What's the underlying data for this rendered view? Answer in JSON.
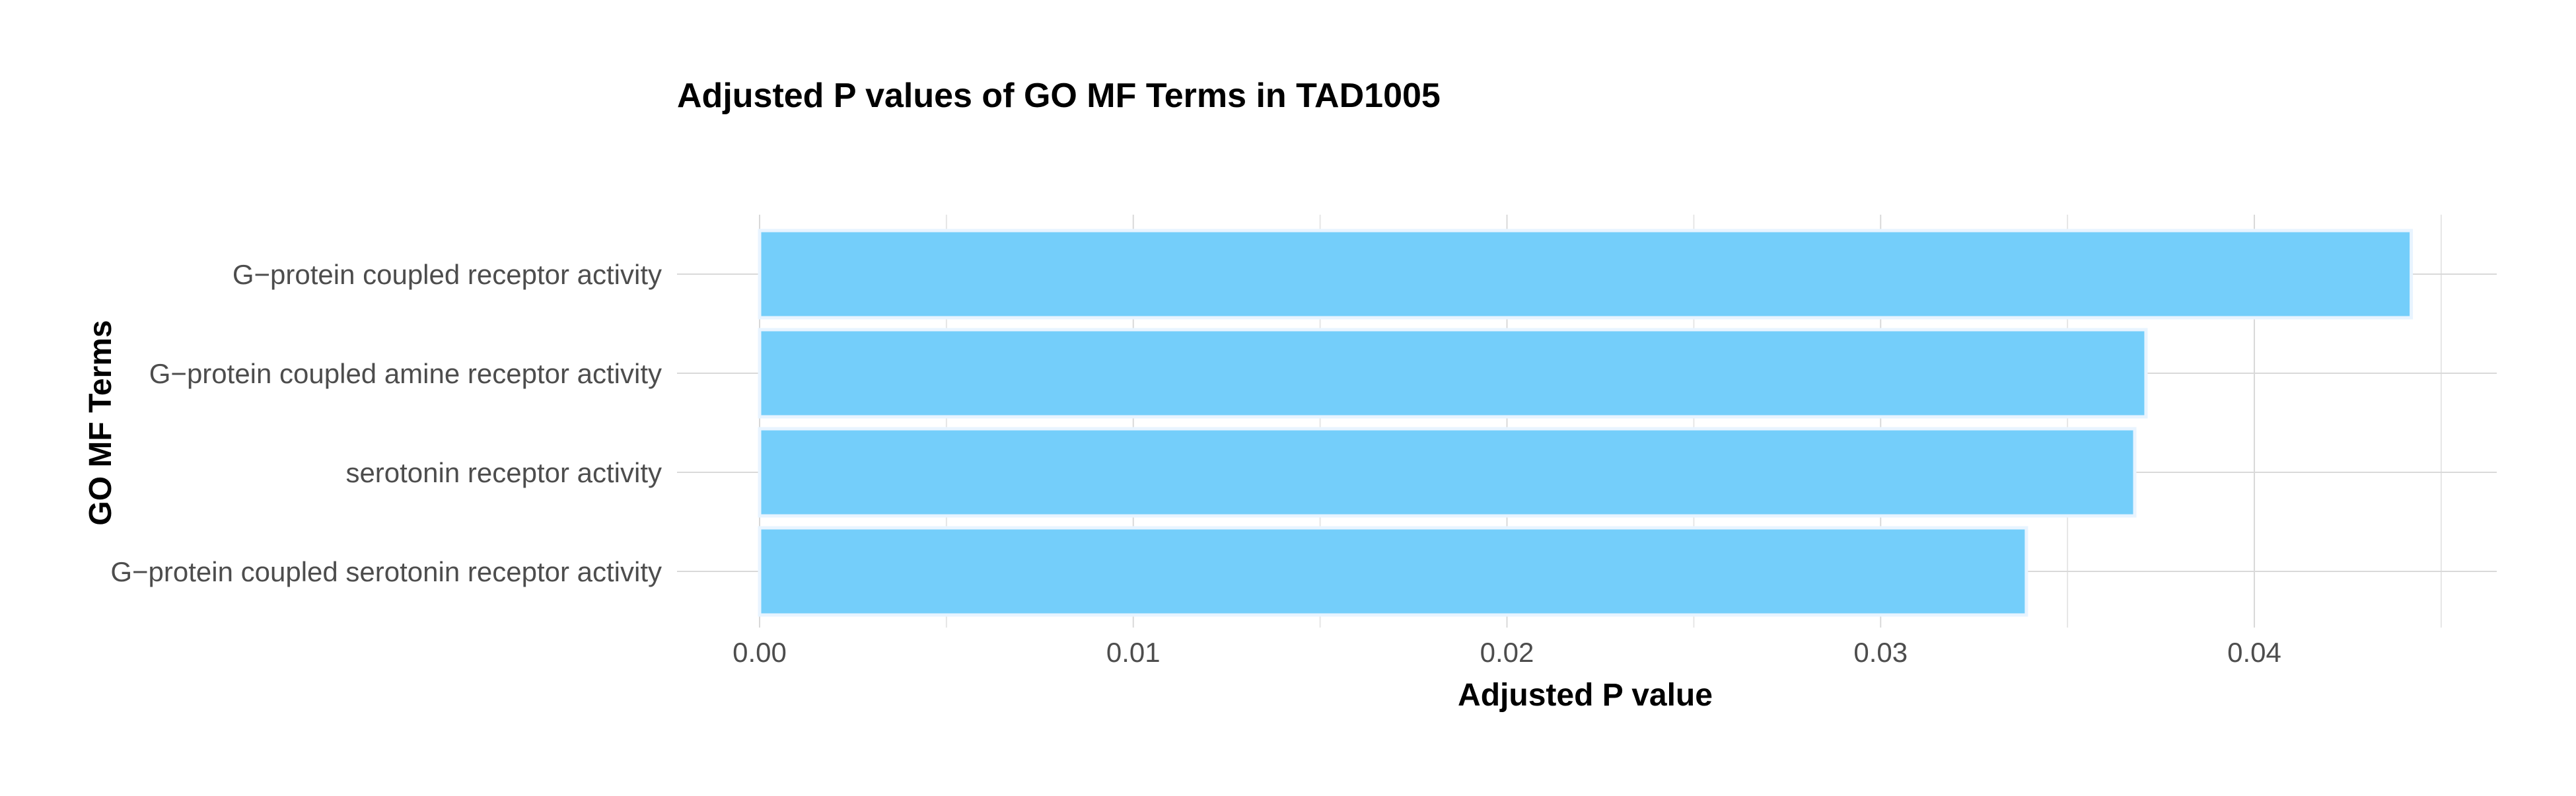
{
  "chart_data": {
    "type": "bar",
    "orientation": "horizontal",
    "title": "Adjusted P values of GO MF Terms in TAD1005",
    "xlabel": "Adjusted P value",
    "ylabel": "GO MF Terms",
    "categories": [
      "G−protein coupled receptor activity",
      "G−protein coupled amine receptor activity",
      "serotonin receptor activity",
      "G−protein coupled serotonin receptor activity"
    ],
    "values": [
      0.0442,
      0.0371,
      0.0368,
      0.0339
    ],
    "xlim": [
      0,
      0.0465
    ],
    "x_ticks": [
      0.0,
      0.01,
      0.02,
      0.03,
      0.04
    ],
    "x_tick_labels": [
      "0.00",
      "0.01",
      "0.02",
      "0.03",
      "0.04"
    ],
    "grid": true,
    "legend": "none",
    "bar_color": "#74CEFA"
  }
}
